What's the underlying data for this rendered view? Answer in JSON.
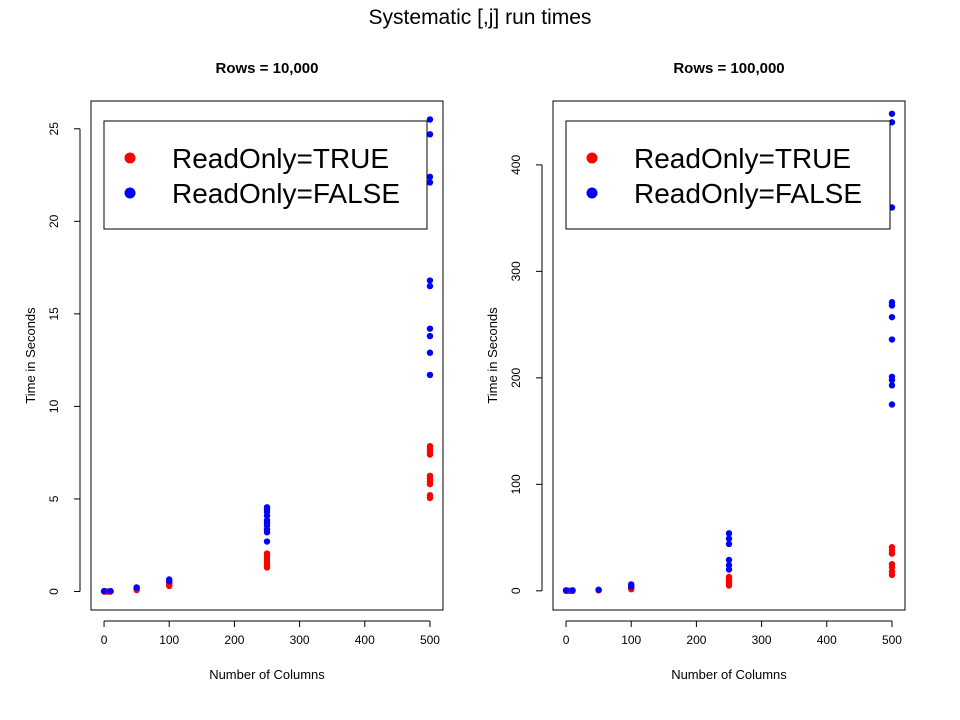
{
  "main_title": "Systematic [,j] run times",
  "colors": {
    "read_only_true": "#ff0000",
    "read_only_false": "#0000ff",
    "axis": "#000000"
  },
  "chart_data": [
    {
      "type": "scatter",
      "title": "Rows = 10,000",
      "xlabel": "Number of Columns",
      "ylabel": "Time in Seconds",
      "xlim": [
        -20,
        520
      ],
      "ylim": [
        -1,
        26.5
      ],
      "xticks": [
        0,
        100,
        200,
        300,
        400,
        500
      ],
      "yticks": [
        0,
        5,
        10,
        15,
        20,
        25
      ],
      "legend_position": "top-left",
      "grid": false,
      "series": [
        {
          "name": "ReadOnly=TRUE",
          "color": "#ff0000",
          "points": [
            [
              0,
              0.0
            ],
            [
              2,
              0.0
            ],
            [
              4,
              0.0
            ],
            [
              6,
              0.0
            ],
            [
              8,
              0.0
            ],
            [
              10,
              0.0
            ],
            [
              50,
              0.08
            ],
            [
              50,
              0.12
            ],
            [
              50,
              0.15
            ],
            [
              100,
              0.3
            ],
            [
              100,
              0.35
            ],
            [
              100,
              0.45
            ],
            [
              250,
              1.3
            ],
            [
              250,
              1.45
            ],
            [
              250,
              1.6
            ],
            [
              250,
              1.75
            ],
            [
              250,
              1.9
            ],
            [
              250,
              2.05
            ],
            [
              500,
              5.05
            ],
            [
              500,
              5.2
            ],
            [
              500,
              5.8
            ],
            [
              500,
              5.95
            ],
            [
              500,
              6.1
            ],
            [
              500,
              6.25
            ],
            [
              500,
              7.4
            ],
            [
              500,
              7.55
            ],
            [
              500,
              7.7
            ],
            [
              500,
              7.85
            ]
          ]
        },
        {
          "name": "ReadOnly=FALSE",
          "color": "#0000ff",
          "points": [
            [
              0,
              0.02
            ],
            [
              10,
              0.02
            ],
            [
              50,
              0.2
            ],
            [
              50,
              0.22
            ],
            [
              100,
              0.55
            ],
            [
              100,
              0.65
            ],
            [
              250,
              2.7
            ],
            [
              250,
              3.2
            ],
            [
              250,
              3.35
            ],
            [
              250,
              3.55
            ],
            [
              250,
              3.7
            ],
            [
              250,
              3.85
            ],
            [
              250,
              4.1
            ],
            [
              250,
              4.3
            ],
            [
              250,
              4.45
            ],
            [
              250,
              4.55
            ],
            [
              500,
              11.7
            ],
            [
              500,
              12.9
            ],
            [
              500,
              13.8
            ],
            [
              500,
              14.2
            ],
            [
              500,
              16.5
            ],
            [
              500,
              16.8
            ],
            [
              500,
              22.1
            ],
            [
              500,
              22.4
            ],
            [
              500,
              24.7
            ],
            [
              500,
              25.5
            ]
          ]
        }
      ]
    },
    {
      "type": "scatter",
      "title": "Rows = 100,000",
      "xlabel": "Number of Columns",
      "ylabel": "Time in Seconds",
      "xlim": [
        -20,
        520
      ],
      "ylim": [
        -18,
        460
      ],
      "xticks": [
        0,
        100,
        200,
        300,
        400,
        500
      ],
      "yticks": [
        0,
        100,
        200,
        300,
        400
      ],
      "legend_position": "top-left",
      "grid": false,
      "series": [
        {
          "name": "ReadOnly=TRUE",
          "color": "#ff0000",
          "points": [
            [
              0,
              0.0
            ],
            [
              2,
              0.0
            ],
            [
              4,
              0.0
            ],
            [
              6,
              0.0
            ],
            [
              8,
              0.0
            ],
            [
              10,
              0.0
            ],
            [
              50,
              0.5
            ],
            [
              50,
              1.0
            ],
            [
              100,
              1.5
            ],
            [
              100,
              3.0
            ],
            [
              250,
              5
            ],
            [
              250,
              7
            ],
            [
              250,
              9
            ],
            [
              250,
              11
            ],
            [
              250,
              13
            ],
            [
              500,
              15
            ],
            [
              500,
              18
            ],
            [
              500,
              22
            ],
            [
              500,
              25
            ],
            [
              500,
              35
            ],
            [
              500,
              38
            ],
            [
              500,
              41
            ]
          ]
        },
        {
          "name": "ReadOnly=FALSE",
          "color": "#0000ff",
          "points": [
            [
              0,
              0.5
            ],
            [
              10,
              0.5
            ],
            [
              50,
              1.0
            ],
            [
              100,
              4.0
            ],
            [
              100,
              6.0
            ],
            [
              250,
              20
            ],
            [
              250,
              24
            ],
            [
              250,
              29
            ],
            [
              250,
              44
            ],
            [
              250,
              49
            ],
            [
              250,
              54
            ],
            [
              500,
              175
            ],
            [
              500,
              193
            ],
            [
              500,
              198
            ],
            [
              500,
              201
            ],
            [
              500,
              236
            ],
            [
              500,
              257
            ],
            [
              500,
              268
            ],
            [
              500,
              271
            ],
            [
              500,
              360
            ],
            [
              500,
              440
            ],
            [
              500,
              448
            ]
          ]
        }
      ]
    }
  ]
}
